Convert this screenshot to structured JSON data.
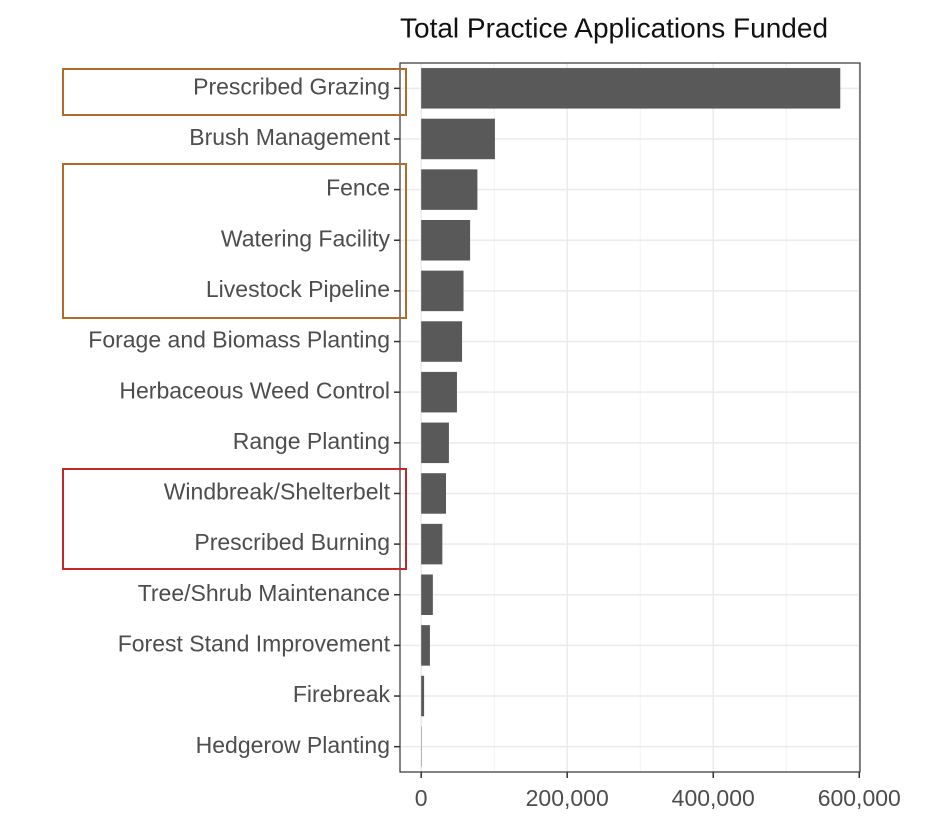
{
  "chart_data": {
    "type": "bar",
    "orientation": "horizontal",
    "title": "Total Practice Applications Funded",
    "categories": [
      "Prescribed Grazing",
      "Brush Management",
      "Fence",
      "Watering Facility",
      "Livestock Pipeline",
      "Forage and Biomass Planting",
      "Herbaceous Weed Control",
      "Range Planting",
      "Windbreak/Shelterbelt",
      "Prescribed Burning",
      "Tree/Shrub Maintenance",
      "Forest Stand Improvement",
      "Firebreak",
      "Hedgerow Planting"
    ],
    "values": [
      574000,
      101000,
      77000,
      67000,
      58000,
      56000,
      49000,
      38000,
      34000,
      29000,
      16000,
      12000,
      4000,
      500
    ],
    "color": "#595959",
    "xlim": [
      -29000,
      601000
    ],
    "xticks": [
      0,
      {
        "value": 200000,
        "label": "200,000"
      },
      {
        "value": 400000,
        "label": "400,000"
      },
      {
        "value": 600000,
        "label": "600,000"
      }
    ],
    "minor_xticks": [
      100000,
      300000,
      500000
    ],
    "grid": true
  }
}
